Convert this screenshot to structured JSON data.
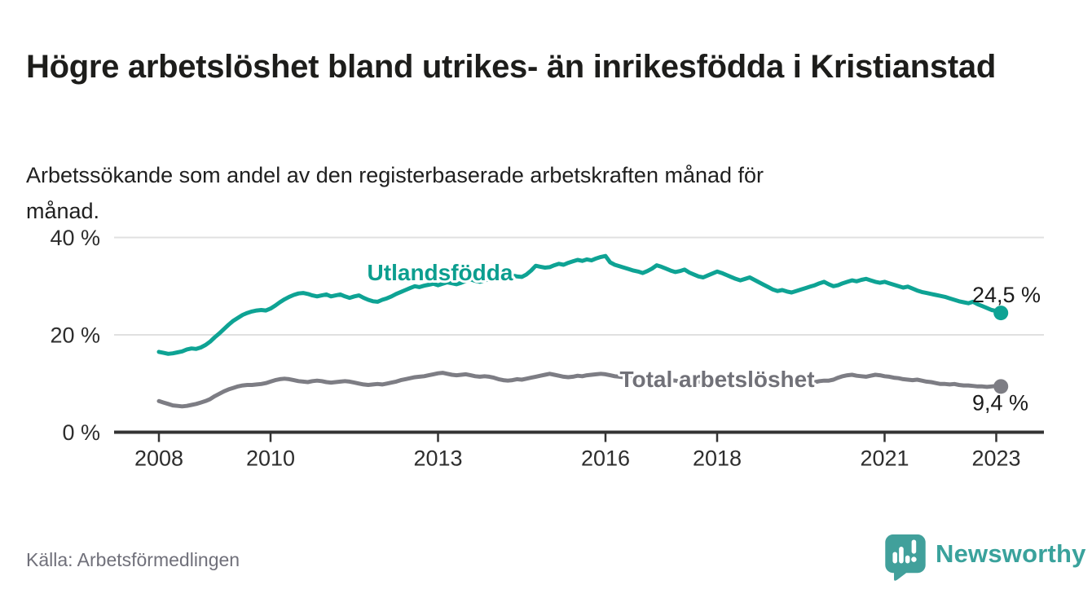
{
  "header": {
    "title": "Högre arbetslöshet bland utrikes- än inrikesfödda i Kristianstad",
    "subtitle": "Arbetssökande som andel av den registerbaserade arbetskraften månad för månad."
  },
  "footer": {
    "source": "Källa: Arbetsförmedlingen",
    "brand": "Newsworthy"
  },
  "colors": {
    "teal_series": "#0ea394",
    "gray_series": "#7d7d84",
    "teal_label": "#0c9e8f",
    "gray_label": "#717178",
    "logo_teal": "#41a09b",
    "axis": "#333333",
    "gridline": "#e0e0e0",
    "tick_text": "#2d2d2d",
    "value_text": "#1a1a1a"
  },
  "chart_data": {
    "type": "line",
    "frequency": "monthly",
    "x_start": "2008-01",
    "x_end": "2023-02",
    "ylim": [
      0,
      40
    ],
    "grid": "horizontal",
    "y_ticks": [
      {
        "value": 0,
        "label": "0 %"
      },
      {
        "value": 20,
        "label": "20 %"
      },
      {
        "value": 40,
        "label": "40 %"
      }
    ],
    "y_gridlines": [
      20,
      40
    ],
    "x_tick_years": [
      2008,
      2010,
      2013,
      2016,
      2018,
      2021,
      2023
    ],
    "legend_position": "inline-labels",
    "series": [
      {
        "name": "Utlandsfödda",
        "color": "#0ea394",
        "end_label": "24,5 %",
        "end_value": 24.5,
        "values": [
          16.5,
          16.3,
          16.1,
          16.2,
          16.4,
          16.6,
          17.0,
          17.2,
          17.1,
          17.4,
          17.9,
          18.6,
          19.5,
          20.3,
          21.2,
          22.1,
          22.9,
          23.5,
          24.1,
          24.5,
          24.8,
          25.0,
          25.1,
          25.0,
          25.4,
          26.0,
          26.7,
          27.3,
          27.8,
          28.2,
          28.5,
          28.6,
          28.4,
          28.1,
          27.9,
          28.1,
          28.3,
          27.9,
          28.1,
          28.3,
          27.9,
          27.6,
          27.9,
          28.1,
          27.6,
          27.2,
          26.9,
          26.8,
          27.2,
          27.5,
          27.9,
          28.4,
          28.8,
          29.2,
          29.6,
          30.0,
          29.8,
          30.1,
          30.3,
          30.5,
          30.2,
          30.5,
          30.8,
          30.6,
          30.4,
          30.7,
          31.1,
          31.4,
          31.1,
          30.9,
          31.2,
          31.4,
          31.5,
          31.8,
          32.1,
          31.9,
          32.2,
          32.0,
          31.9,
          32.4,
          33.2,
          34.2,
          34.0,
          33.8,
          33.9,
          34.3,
          34.6,
          34.4,
          34.8,
          35.1,
          35.4,
          35.2,
          35.5,
          35.3,
          35.7,
          36.0,
          36.2,
          34.9,
          34.4,
          34.1,
          33.8,
          33.5,
          33.2,
          33.0,
          32.7,
          33.1,
          33.6,
          34.3,
          34.0,
          33.6,
          33.2,
          32.9,
          33.1,
          33.4,
          32.8,
          32.4,
          32.0,
          31.8,
          32.2,
          32.6,
          33.0,
          32.7,
          32.3,
          31.9,
          31.5,
          31.2,
          31.5,
          31.8,
          31.3,
          30.8,
          30.3,
          29.8,
          29.3,
          29.0,
          29.2,
          28.9,
          28.7,
          29.0,
          29.3,
          29.6,
          29.9,
          30.2,
          30.6,
          30.9,
          30.4,
          30.0,
          30.2,
          30.6,
          30.9,
          31.2,
          31.0,
          31.3,
          31.5,
          31.2,
          30.9,
          30.7,
          30.9,
          30.6,
          30.3,
          30.0,
          29.7,
          29.9,
          29.5,
          29.1,
          28.8,
          28.6,
          28.4,
          28.2,
          28.0,
          27.8,
          27.5,
          27.2,
          26.9,
          26.7,
          26.5,
          26.8,
          26.3,
          25.9,
          25.5,
          25.1,
          24.9,
          24.5
        ]
      },
      {
        "name": "Total arbetslöshet",
        "color": "#7d7d84",
        "end_label": "9,4 %",
        "end_value": 9.4,
        "values": [
          6.4,
          6.1,
          5.8,
          5.5,
          5.4,
          5.3,
          5.4,
          5.6,
          5.8,
          6.1,
          6.4,
          6.8,
          7.4,
          7.9,
          8.4,
          8.8,
          9.1,
          9.4,
          9.6,
          9.7,
          9.7,
          9.8,
          9.9,
          10.1,
          10.4,
          10.7,
          10.9,
          11.0,
          10.9,
          10.7,
          10.5,
          10.4,
          10.3,
          10.5,
          10.6,
          10.5,
          10.3,
          10.2,
          10.3,
          10.4,
          10.5,
          10.4,
          10.2,
          10.0,
          9.8,
          9.7,
          9.8,
          9.9,
          9.8,
          10.0,
          10.2,
          10.4,
          10.7,
          10.9,
          11.1,
          11.3,
          11.4,
          11.5,
          11.7,
          11.9,
          12.1,
          12.2,
          12.0,
          11.8,
          11.7,
          11.8,
          11.9,
          11.7,
          11.5,
          11.4,
          11.5,
          11.4,
          11.2,
          10.9,
          10.7,
          10.6,
          10.7,
          10.9,
          10.8,
          11.0,
          11.2,
          11.4,
          11.6,
          11.8,
          12.0,
          11.8,
          11.6,
          11.4,
          11.3,
          11.4,
          11.6,
          11.5,
          11.7,
          11.8,
          11.9,
          12.0,
          11.9,
          11.7,
          11.5,
          11.4,
          11.3,
          11.2,
          11.1,
          11.0,
          10.9,
          10.8,
          10.9,
          11.0,
          10.9,
          10.8,
          10.7,
          10.6,
          10.5,
          10.6,
          10.7,
          10.5,
          10.4,
          10.3,
          10.2,
          10.3,
          10.2,
          10.1,
          10.0,
          9.9,
          9.8,
          9.9,
          10.0,
          9.9,
          9.8,
          9.7,
          9.8,
          9.9,
          10.0,
          9.9,
          9.8,
          9.9,
          10.0,
          10.1,
          10.2,
          10.1,
          10.2,
          10.3,
          10.5,
          10.6,
          10.6,
          10.8,
          11.2,
          11.5,
          11.7,
          11.8,
          11.6,
          11.5,
          11.4,
          11.6,
          11.8,
          11.7,
          11.5,
          11.4,
          11.2,
          11.1,
          10.9,
          10.8,
          10.7,
          10.8,
          10.6,
          10.4,
          10.3,
          10.1,
          9.9,
          9.9,
          9.8,
          9.9,
          9.7,
          9.6,
          9.6,
          9.5,
          9.4,
          9.4,
          9.3,
          9.4,
          9.5,
          9.4
        ]
      }
    ]
  }
}
